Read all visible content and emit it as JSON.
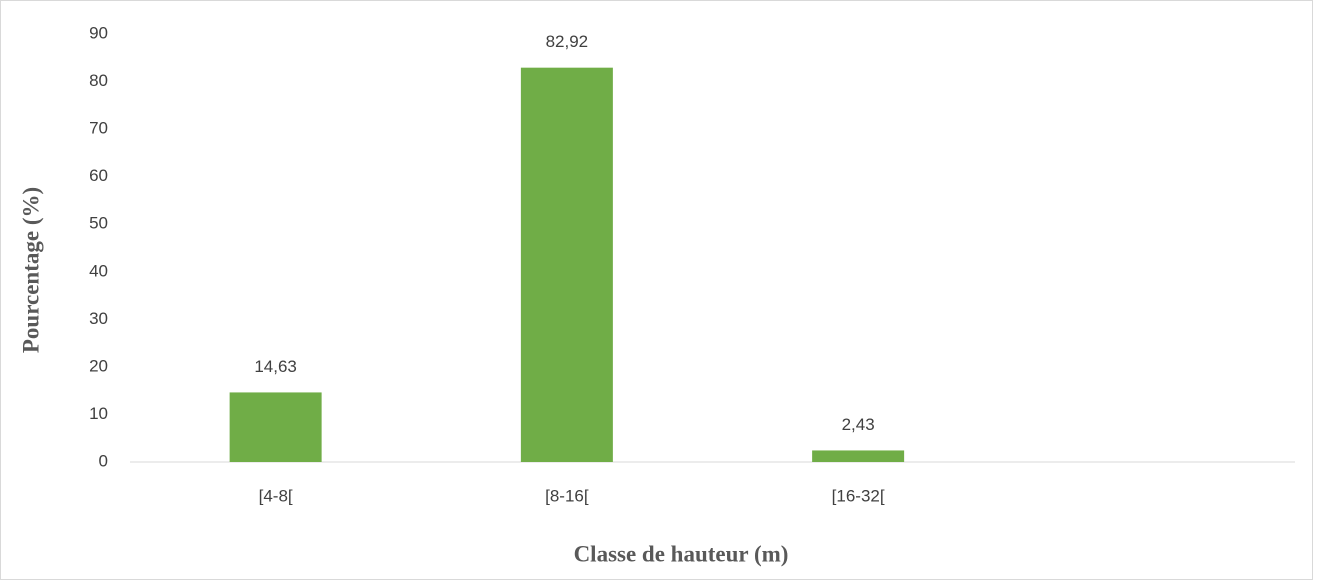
{
  "chart_data": {
    "type": "bar",
    "x_label": "Classe de hauteur (m)",
    "y_label": "Pourcentage (%)",
    "categories": [
      "[4-8[",
      "[8-16[",
      "[16-32[",
      null
    ],
    "values": [
      14.63,
      82.92,
      2.43,
      null
    ],
    "value_labels": [
      "14,63",
      "82,92",
      "2,43",
      null
    ],
    "color": "#70ad47",
    "ylim": [
      0,
      90
    ],
    "yticks": [
      0,
      10,
      20,
      30,
      40,
      50,
      60,
      70,
      80,
      90
    ],
    "grid": false
  }
}
